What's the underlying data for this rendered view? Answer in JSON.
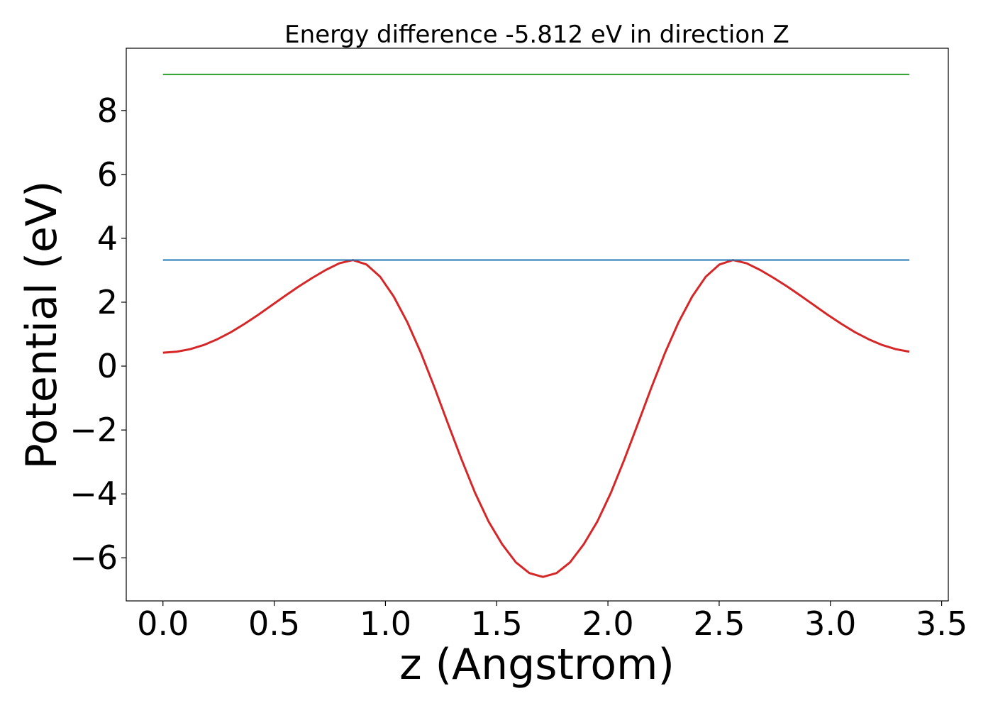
{
  "chart_data": {
    "type": "line",
    "title": "Energy difference -5.812 eV in direction Z",
    "xlabel": "z (Angstrom)",
    "ylabel": "Potential (eV)",
    "xlim": [
      -0.165,
      3.53
    ],
    "ylim": [
      -7.35,
      9.95
    ],
    "xticks": [
      0.0,
      0.5,
      1.0,
      1.5,
      2.0,
      2.5,
      3.0,
      3.5
    ],
    "xtick_labels": [
      "0.0",
      "0.5",
      "1.0",
      "1.5",
      "2.0",
      "2.5",
      "3.0",
      "3.5"
    ],
    "yticks": [
      -6,
      -4,
      -2,
      0,
      2,
      4,
      6,
      8
    ],
    "ytick_labels": [
      "−6",
      "−4",
      "−2",
      "0",
      "2",
      "4",
      "6",
      "8"
    ],
    "grid": false,
    "legend": "none",
    "series": [
      {
        "color": "#d62728",
        "x": [
          0.0,
          0.061,
          0.122,
          0.183,
          0.244,
          0.305,
          0.366,
          0.427,
          0.488,
          0.549,
          0.61,
          0.671,
          0.732,
          0.793,
          0.854,
          0.915,
          0.976,
          1.037,
          1.098,
          1.159,
          1.22,
          1.281,
          1.342,
          1.403,
          1.464,
          1.525,
          1.586,
          1.647,
          1.708,
          1.769,
          1.83,
          1.891,
          1.952,
          2.013,
          2.074,
          2.135,
          2.196,
          2.257,
          2.318,
          2.379,
          2.44,
          2.501,
          2.562,
          2.623,
          2.684,
          2.745,
          2.806,
          2.867,
          2.928,
          2.989,
          3.05,
          3.111,
          3.172,
          3.233,
          3.294,
          3.355
        ],
        "y": [
          0.42,
          0.45,
          0.53,
          0.66,
          0.84,
          1.06,
          1.32,
          1.6,
          1.9,
          2.2,
          2.49,
          2.76,
          3.01,
          3.22,
          3.32,
          3.18,
          2.8,
          2.18,
          1.38,
          0.42,
          -0.66,
          -1.8,
          -2.92,
          -3.97,
          -4.87,
          -5.58,
          -6.14,
          -6.48,
          -6.6,
          -6.48,
          -6.14,
          -5.58,
          -4.87,
          -3.97,
          -2.92,
          -1.8,
          -0.66,
          0.42,
          1.38,
          2.18,
          2.8,
          3.18,
          3.32,
          3.22,
          3.01,
          2.76,
          2.49,
          2.2,
          1.9,
          1.6,
          1.32,
          1.06,
          0.84,
          0.66,
          0.53,
          0.45
        ]
      },
      {
        "color": "#2ca02c",
        "x": [
          0.0,
          3.355
        ],
        "y": [
          9.13,
          9.13
        ]
      },
      {
        "color": "#1f77b4",
        "x": [
          0.0,
          3.355
        ],
        "y": [
          3.32,
          3.32
        ]
      }
    ]
  }
}
